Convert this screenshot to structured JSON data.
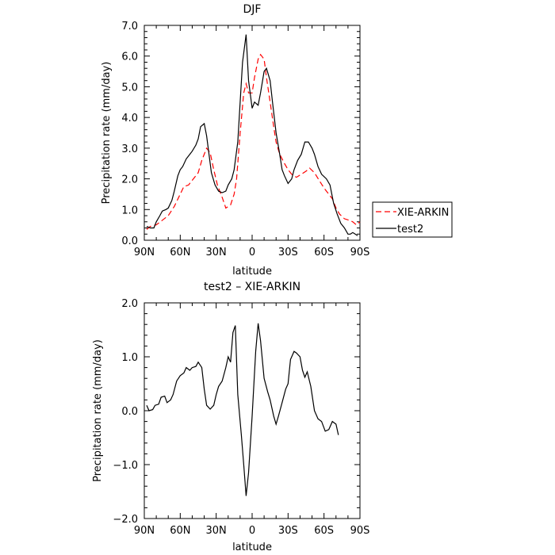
{
  "chart_data": [
    {
      "type": "line",
      "title": "DJF",
      "xlabel": "latitude",
      "ylabel": "Precipitation rate (mm/day)",
      "x_range": [
        90,
        -90
      ],
      "x_ticks": [
        {
          "value": 90,
          "label": "90N"
        },
        {
          "value": 60,
          "label": "60N"
        },
        {
          "value": 30,
          "label": "30N"
        },
        {
          "value": 0,
          "label": "0"
        },
        {
          "value": -30,
          "label": "30S"
        },
        {
          "value": -60,
          "label": "60S"
        },
        {
          "value": -90,
          "label": "90S"
        }
      ],
      "ylim": [
        0,
        7
      ],
      "y_ticks": [
        {
          "value": 0,
          "label": "0.0"
        },
        {
          "value": 1,
          "label": "1.0"
        },
        {
          "value": 2,
          "label": "2.0"
        },
        {
          "value": 3,
          "label": "3.0"
        },
        {
          "value": 4,
          "label": "4.0"
        },
        {
          "value": 5,
          "label": "5.0"
        },
        {
          "value": 6,
          "label": "6.0"
        },
        {
          "value": 7,
          "label": "7.0"
        }
      ],
      "grid": false,
      "legend_placement": "right",
      "series": [
        {
          "name": "XIE-ARKIN",
          "color": "#ff0000",
          "dash": "dashed",
          "points": [
            [
              88,
              0.35
            ],
            [
              85,
              0.45
            ],
            [
              80,
              0.5
            ],
            [
              75,
              0.65
            ],
            [
              70,
              0.8
            ],
            [
              65,
              1.1
            ],
            [
              60,
              1.5
            ],
            [
              57,
              1.75
            ],
            [
              53,
              1.8
            ],
            [
              50,
              1.95
            ],
            [
              45,
              2.2
            ],
            [
              42,
              2.6
            ],
            [
              38,
              3.0
            ],
            [
              35,
              2.85
            ],
            [
              32,
              2.3
            ],
            [
              29,
              1.8
            ],
            [
              25,
              1.4
            ],
            [
              22,
              1.05
            ],
            [
              18,
              1.15
            ],
            [
              15,
              1.5
            ],
            [
              13,
              2.0
            ],
            [
              10,
              3.5
            ],
            [
              7,
              4.8
            ],
            [
              5,
              5.1
            ],
            [
              3,
              4.8
            ],
            [
              0,
              4.8
            ],
            [
              -2,
              5.3
            ],
            [
              -5,
              5.9
            ],
            [
              -7,
              6.05
            ],
            [
              -10,
              5.9
            ],
            [
              -12,
              5.3
            ],
            [
              -15,
              4.5
            ],
            [
              -18,
              3.7
            ],
            [
              -20,
              3.2
            ],
            [
              -23,
              2.8
            ],
            [
              -27,
              2.5
            ],
            [
              -30,
              2.3
            ],
            [
              -33,
              2.15
            ],
            [
              -37,
              2.05
            ],
            [
              -41,
              2.15
            ],
            [
              -45,
              2.25
            ],
            [
              -48,
              2.35
            ],
            [
              -52,
              2.2
            ],
            [
              -56,
              1.95
            ],
            [
              -60,
              1.7
            ],
            [
              -63,
              1.55
            ],
            [
              -67,
              1.35
            ],
            [
              -70,
              1.05
            ],
            [
              -73,
              0.85
            ],
            [
              -77,
              0.7
            ],
            [
              -81,
              0.65
            ],
            [
              -84,
              0.6
            ],
            [
              -87,
              0.5
            ],
            [
              -90,
              0.6
            ]
          ]
        },
        {
          "name": "test2",
          "color": "#000000",
          "dash": "solid",
          "points": [
            [
              88,
              0.45
            ],
            [
              85,
              0.4
            ],
            [
              82,
              0.4
            ],
            [
              80,
              0.6
            ],
            [
              77,
              0.8
            ],
            [
              75,
              0.95
            ],
            [
              72,
              1.0
            ],
            [
              70,
              1.05
            ],
            [
              67,
              1.3
            ],
            [
              65,
              1.6
            ],
            [
              62,
              2.1
            ],
            [
              60,
              2.3
            ],
            [
              58,
              2.4
            ],
            [
              55,
              2.65
            ],
            [
              52,
              2.8
            ],
            [
              50,
              2.9
            ],
            [
              47,
              3.1
            ],
            [
              45,
              3.3
            ],
            [
              43,
              3.7
            ],
            [
              40,
              3.8
            ],
            [
              38,
              3.4
            ],
            [
              36,
              2.8
            ],
            [
              34,
              2.2
            ],
            [
              31,
              1.8
            ],
            [
              28,
              1.6
            ],
            [
              25,
              1.55
            ],
            [
              22,
              1.6
            ],
            [
              20,
              1.8
            ],
            [
              17,
              2.0
            ],
            [
              15,
              2.3
            ],
            [
              12,
              3.2
            ],
            [
              10,
              4.5
            ],
            [
              8,
              5.8
            ],
            [
              5,
              6.7
            ],
            [
              3,
              5.2
            ],
            [
              0,
              4.3
            ],
            [
              -2,
              4.5
            ],
            [
              -5,
              4.4
            ],
            [
              -7,
              4.8
            ],
            [
              -10,
              5.5
            ],
            [
              -12,
              5.6
            ],
            [
              -15,
              5.2
            ],
            [
              -17,
              4.5
            ],
            [
              -20,
              3.5
            ],
            [
              -23,
              2.8
            ],
            [
              -25,
              2.3
            ],
            [
              -27,
              2.1
            ],
            [
              -30,
              1.85
            ],
            [
              -33,
              2.0
            ],
            [
              -35,
              2.3
            ],
            [
              -38,
              2.6
            ],
            [
              -41,
              2.8
            ],
            [
              -44,
              3.2
            ],
            [
              -47,
              3.2
            ],
            [
              -50,
              3.0
            ],
            [
              -52,
              2.8
            ],
            [
              -55,
              2.4
            ],
            [
              -58,
              2.15
            ],
            [
              -62,
              2.0
            ],
            [
              -65,
              1.8
            ],
            [
              -68,
              1.2
            ],
            [
              -71,
              0.85
            ],
            [
              -74,
              0.55
            ],
            [
              -77,
              0.4
            ],
            [
              -80,
              0.2
            ],
            [
              -82,
              0.2
            ],
            [
              -84,
              0.25
            ],
            [
              -86,
              0.2
            ],
            [
              -88,
              0.15
            ]
          ]
        }
      ]
    },
    {
      "type": "line",
      "title": "test2 – XIE-ARKIN",
      "xlabel": "latitude",
      "ylabel": "Precipitation rate (mm/day)",
      "x_range": [
        90,
        -90
      ],
      "x_ticks": [
        {
          "value": 90,
          "label": "90N"
        },
        {
          "value": 60,
          "label": "60N"
        },
        {
          "value": 30,
          "label": "30N"
        },
        {
          "value": 0,
          "label": "0"
        },
        {
          "value": -30,
          "label": "30S"
        },
        {
          "value": -60,
          "label": "60S"
        },
        {
          "value": -90,
          "label": "90S"
        }
      ],
      "ylim": [
        -2,
        2
      ],
      "y_ticks": [
        {
          "value": -2,
          "label": "−2.0"
        },
        {
          "value": -1,
          "label": "−1.0"
        },
        {
          "value": 0,
          "label": "0.0"
        },
        {
          "value": 1,
          "label": "1.0"
        },
        {
          "value": 2,
          "label": "2.0"
        }
      ],
      "grid": false,
      "series": [
        {
          "color": "#000000",
          "dash": "solid",
          "points": [
            [
              88,
              0.1
            ],
            [
              86,
              0.0
            ],
            [
              83,
              0.02
            ],
            [
              81,
              0.1
            ],
            [
              78,
              0.12
            ],
            [
              76,
              0.25
            ],
            [
              73,
              0.27
            ],
            [
              71,
              0.15
            ],
            [
              68,
              0.2
            ],
            [
              66,
              0.3
            ],
            [
              63,
              0.55
            ],
            [
              60,
              0.65
            ],
            [
              57,
              0.7
            ],
            [
              55,
              0.8
            ],
            [
              52,
              0.75
            ],
            [
              50,
              0.8
            ],
            [
              47,
              0.82
            ],
            [
              45,
              0.9
            ],
            [
              42,
              0.8
            ],
            [
              40,
              0.4
            ],
            [
              38,
              0.1
            ],
            [
              35,
              0.03
            ],
            [
              32,
              0.1
            ],
            [
              30,
              0.3
            ],
            [
              28,
              0.45
            ],
            [
              25,
              0.55
            ],
            [
              22,
              0.8
            ],
            [
              20,
              1.0
            ],
            [
              18,
              0.9
            ],
            [
              16,
              1.45
            ],
            [
              14,
              1.58
            ],
            [
              12,
              0.3
            ],
            [
              9,
              -0.45
            ],
            [
              7,
              -1.0
            ],
            [
              5,
              -1.58
            ],
            [
              3,
              -1.15
            ],
            [
              0,
              -0.1
            ],
            [
              -3,
              1.1
            ],
            [
              -5,
              1.62
            ],
            [
              -7,
              1.3
            ],
            [
              -10,
              0.6
            ],
            [
              -13,
              0.35
            ],
            [
              -15,
              0.2
            ],
            [
              -18,
              -0.1
            ],
            [
              -20,
              -0.25
            ],
            [
              -22,
              -0.1
            ],
            [
              -25,
              0.15
            ],
            [
              -28,
              0.4
            ],
            [
              -30,
              0.5
            ],
            [
              -32,
              0.95
            ],
            [
              -35,
              1.1
            ],
            [
              -37,
              1.07
            ],
            [
              -40,
              1.0
            ],
            [
              -42,
              0.75
            ],
            [
              -44,
              0.62
            ],
            [
              -46,
              0.72
            ],
            [
              -49,
              0.45
            ],
            [
              -52,
              0.0
            ],
            [
              -55,
              -0.15
            ],
            [
              -58,
              -0.2
            ],
            [
              -61,
              -0.38
            ],
            [
              -64,
              -0.35
            ],
            [
              -67,
              -0.2
            ],
            [
              -70,
              -0.25
            ],
            [
              -72,
              -0.45
            ]
          ]
        }
      ]
    }
  ]
}
